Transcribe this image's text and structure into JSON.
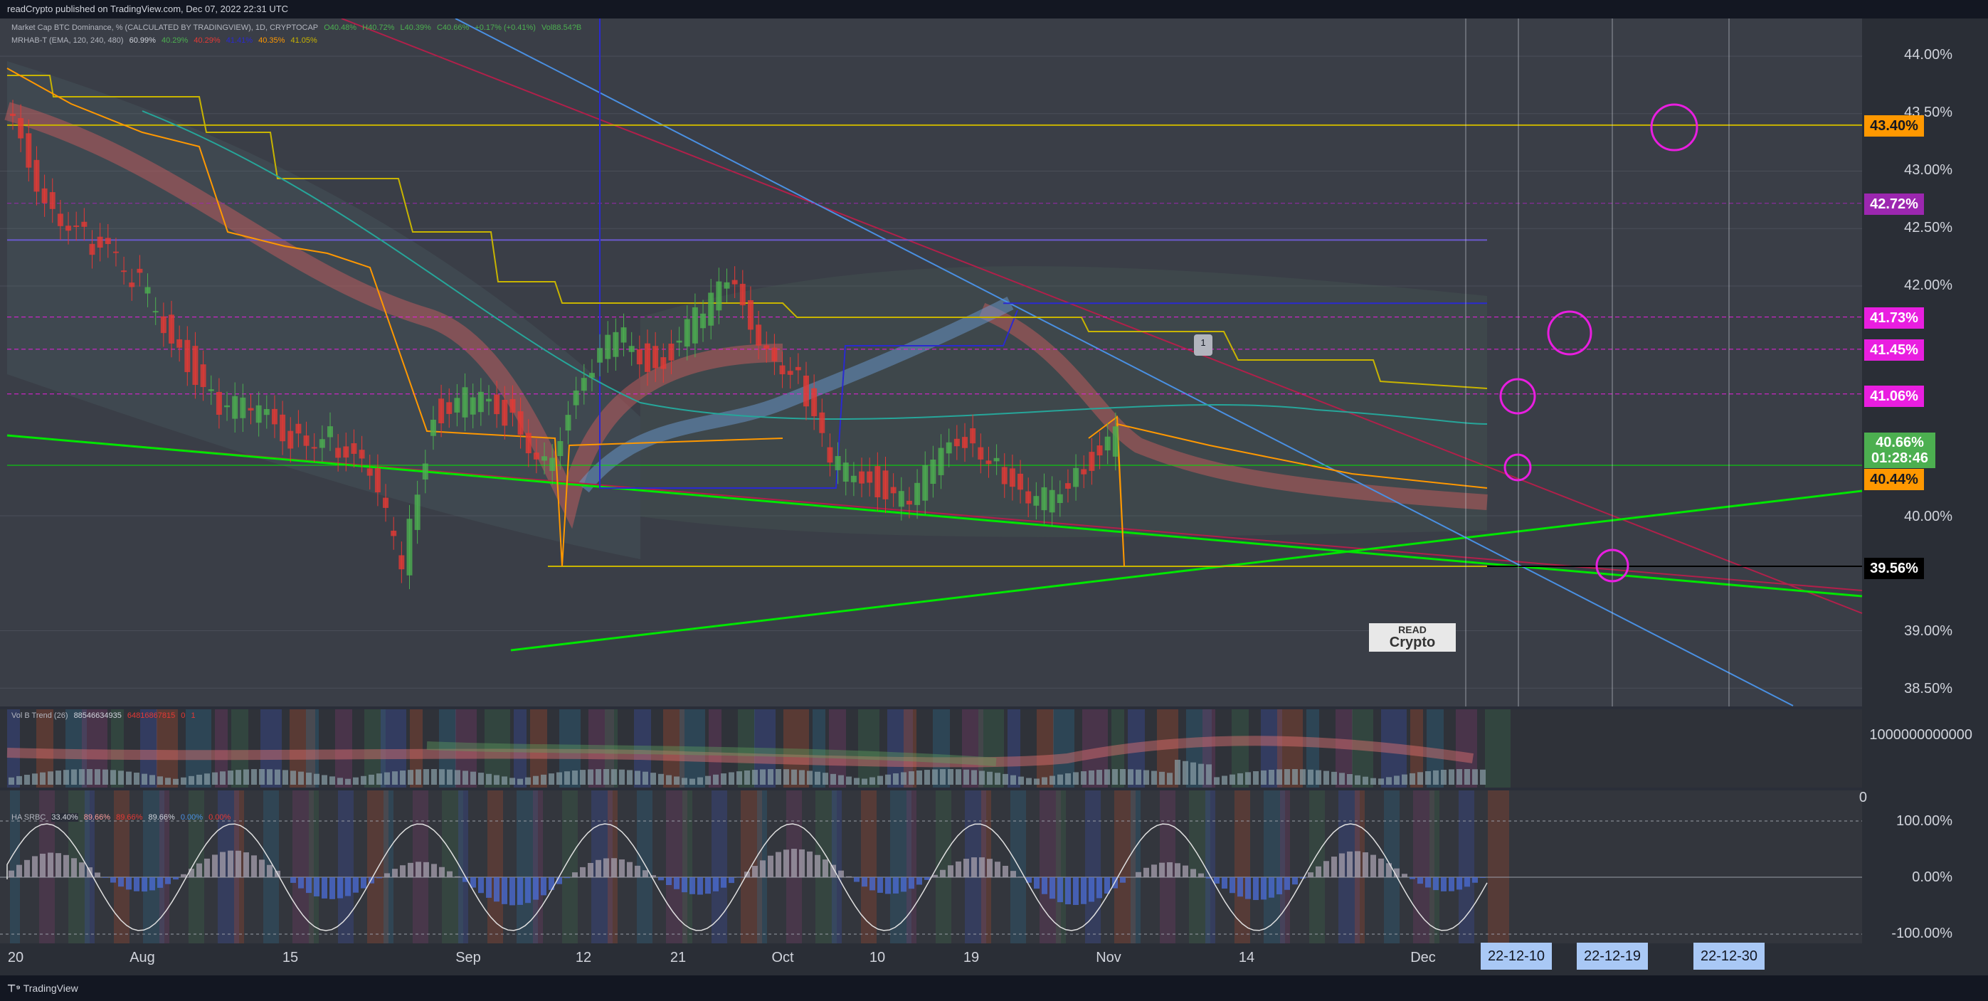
{
  "header": {
    "published": "readCrypto published on TradingView.com, Dec 07, 2022 22:31 UTC"
  },
  "footer": {
    "brand": "TradingView"
  },
  "legend_main": {
    "title": "Market Cap BTC Dominance, %  (CALCULATED BY TRADINGVIEW), 1D, CRYPTOCAP",
    "ohlc": [
      "O40.48%",
      "H40.72%",
      "L40.39%",
      "C40.66%",
      "+0.17% (+0.41%)",
      "Vol88.54?B"
    ],
    "indicator": "MRHAB-T (EMA, 120, 240, 480)",
    "indicator_values": [
      "60.99%",
      "40.29%",
      "40.29%",
      "41.41%",
      "40.35%",
      "41.05%"
    ]
  },
  "legend_vol": {
    "title": "Vol B Trend (26)",
    "values": [
      "88546634935",
      "64816867815",
      "0",
      "1"
    ]
  },
  "legend_ha": {
    "title": "HA SRBC",
    "values": [
      "33.40%",
      "89.66%",
      "89.66%",
      "89.66%",
      "0.00%",
      "0.00%"
    ]
  },
  "y_axis_labels": [
    "44.00%",
    "43.50%",
    "43.00%",
    "42.50%",
    "42.00%",
    "40.00%",
    "39.00%",
    "38.50%"
  ],
  "price_badges": [
    {
      "text": "43.40%",
      "color": "#ff9800",
      "y": 43.4
    },
    {
      "text": "42.72%",
      "color": "#9c27b0",
      "y": 42.72
    },
    {
      "text": "41.73%",
      "color": "#e91ee0",
      "y": 41.73
    },
    {
      "text": "41.45%",
      "color": "#e91ee0",
      "y": 41.45
    },
    {
      "text": "41.06%",
      "color": "#e91ee0",
      "y": 41.06
    },
    {
      "text": "40.44%",
      "color": "#ff9800",
      "y": 40.44
    },
    {
      "text": "39.56%",
      "color": "#000000",
      "y": 39.56
    }
  ],
  "current_price": {
    "price": "40.66%",
    "countdown": "01:28:46",
    "color": "#4caf50",
    "y": 40.66
  },
  "vol_axis": {
    "top": "1000000000000",
    "bottom": "0"
  },
  "ha_axis": [
    "100.00%",
    "0.00%",
    "-100.00%"
  ],
  "x_ticks": [
    "20",
    "Aug",
    "15",
    "Sep",
    "12",
    "21",
    "Oct",
    "10",
    "19",
    "Nov",
    "14",
    "Dec"
  ],
  "x_date_boxes": [
    "22-12-10",
    "22-12-19",
    "22-12-30"
  ],
  "note_marker": "1",
  "watermark": {
    "line1": "READ",
    "line2": "Crypto"
  },
  "colors": {
    "bg": "#1e2127",
    "up": "#4caf50",
    "down": "#e53935",
    "green_line": "#00e600",
    "maroon_line": "#b0204a",
    "blue_line": "#4a90e2",
    "navy_line": "#2a2ad0",
    "yellow_line": "#c8b400",
    "magenta": "#e91ee0"
  },
  "chart_data": {
    "type": "line",
    "title": "Market Cap BTC Dominance, %",
    "xlabel": "",
    "ylabel": "",
    "ylim": [
      38.35,
      44.3
    ],
    "x": [
      "2022-07-20",
      "2022-07-25",
      "2022-07-30",
      "2022-08-05",
      "2022-08-10",
      "2022-08-15",
      "2022-08-20",
      "2022-08-25",
      "2022-08-30",
      "2022-09-04",
      "2022-09-08",
      "2022-09-12",
      "2022-09-16",
      "2022-09-21",
      "2022-09-26",
      "2022-10-01",
      "2022-10-05",
      "2022-10-10",
      "2022-10-15",
      "2022-10-19",
      "2022-10-24",
      "2022-10-28",
      "2022-11-01",
      "2022-11-05",
      "2022-11-10",
      "2022-11-14",
      "2022-11-18",
      "2022-11-22",
      "2022-11-26",
      "2022-12-01",
      "2022-12-07"
    ],
    "series": [
      {
        "values": [
          43.5,
          42.8,
          42.4,
          42.1,
          41.6,
          41.0,
          40.9,
          40.7,
          40.7,
          40.3,
          39.6,
          40.9,
          41.0,
          40.9,
          40.5,
          41.1,
          41.6,
          41.3,
          41.7,
          42.0,
          41.5,
          41.2,
          40.4,
          40.4,
          40.1,
          40.4,
          40.7,
          40.5,
          40.0,
          40.35,
          40.66
        ]
      }
    ]
  }
}
